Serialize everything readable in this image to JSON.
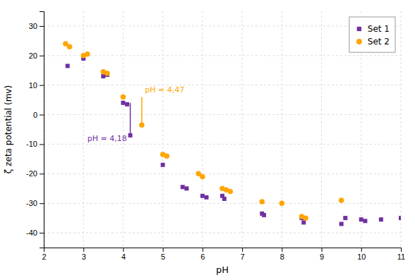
{
  "chart_data": {
    "type": "scatter",
    "x_label": "pH",
    "y_label": "ζ zeta potential (mv)",
    "xlim": [
      2,
      11
    ],
    "ylim": [
      -45,
      35
    ],
    "xticks": [
      2,
      3,
      4,
      5,
      6,
      7,
      8,
      9,
      10,
      11
    ],
    "yticks": [
      -40,
      -30,
      -20,
      -10,
      0,
      10,
      20,
      30
    ],
    "grid": true,
    "legend": "upper right",
    "series": [
      {
        "name": "Set 1",
        "color": "#7030A0",
        "marker": "square",
        "x": [
          2.6,
          3.0,
          3.5,
          3.6,
          4.0,
          4.1,
          4.18,
          5.0,
          5.5,
          5.6,
          6.0,
          6.1,
          6.5,
          6.55,
          7.5,
          7.55,
          8.5,
          8.55,
          9.5,
          9.6,
          10.0,
          10.1,
          10.5,
          11.0
        ],
        "values": [
          16.5,
          19.0,
          13.0,
          13.5,
          4.0,
          3.5,
          -7.0,
          -17.0,
          -24.5,
          -25.0,
          -27.5,
          -28.0,
          -27.5,
          -28.5,
          -33.5,
          -34.0,
          -35.0,
          -36.5,
          -37.0,
          -35.0,
          -35.5,
          -36.0,
          -35.5,
          -35.0
        ]
      },
      {
        "name": "Set 2",
        "color": "#FFA500",
        "marker": "circle",
        "x": [
          2.55,
          2.65,
          3.0,
          3.1,
          3.5,
          3.6,
          4.0,
          4.47,
          5.0,
          5.1,
          5.9,
          6.0,
          6.5,
          6.6,
          6.7,
          7.5,
          8.0,
          8.5,
          8.6,
          9.5
        ],
        "values": [
          24.0,
          23.0,
          20.0,
          20.5,
          14.5,
          14.0,
          6.0,
          -3.5,
          -13.5,
          -14.0,
          -20.0,
          -21.0,
          -25.0,
          -25.5,
          -26.0,
          -29.5,
          -30.0,
          -34.5,
          -35.0,
          -29.0
        ]
      }
    ],
    "annotations": [
      {
        "text": "pH = 4,18",
        "x": 3.1,
        "y": -9.0,
        "color": "#7030A0",
        "segment": {
          "x": [
            4.18,
            4.18
          ],
          "y": [
            -7.0,
            4.0
          ]
        }
      },
      {
        "text": "pH = 4,47",
        "x": 4.55,
        "y": 7.5,
        "color": "#FFA500",
        "segment": {
          "x": [
            4.47,
            4.47
          ],
          "y": [
            -3.5,
            6.0
          ]
        }
      }
    ]
  }
}
